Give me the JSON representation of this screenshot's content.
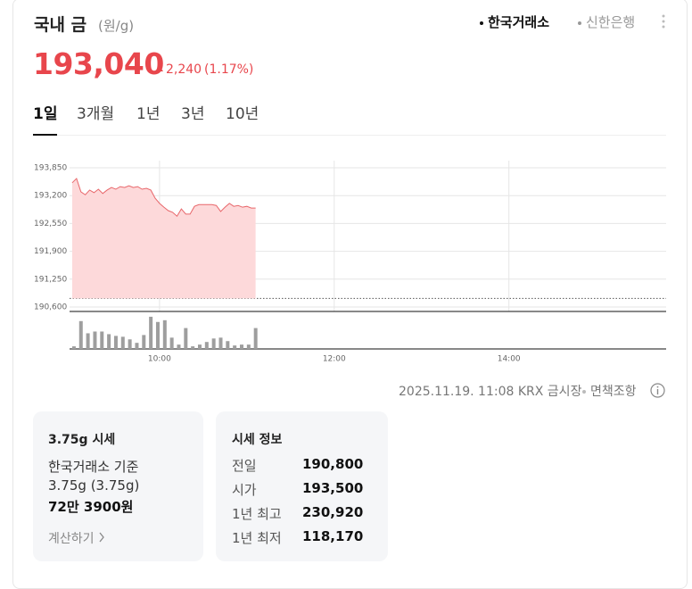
{
  "header": {
    "title": "국내 금",
    "unit": "(원/g)",
    "sources": [
      "한국거래소",
      "신한은행"
    ],
    "price": "193,040",
    "change": "2,240",
    "change_rate": "(1.17%)"
  },
  "tabs": [
    "1일",
    "3개월",
    "1년",
    "3년",
    "10년"
  ],
  "chart_data": {
    "type": "area",
    "x": [
      9.0,
      9.05,
      9.1,
      9.15,
      9.2,
      9.25,
      9.3,
      9.35,
      9.4,
      9.45,
      9.5,
      9.55,
      9.6,
      9.65,
      9.7,
      9.75,
      9.8,
      9.85,
      9.9,
      9.95,
      10.0,
      10.05,
      10.1,
      10.15,
      10.2,
      10.25,
      10.3,
      10.35,
      10.4,
      10.45,
      10.5,
      10.55,
      10.6,
      10.65,
      10.7,
      10.75,
      10.8,
      10.85,
      10.9,
      10.95,
      11.0,
      11.05,
      11.1
    ],
    "values": [
      193500,
      193600,
      193290,
      193220,
      193330,
      193270,
      193350,
      193250,
      193330,
      193390,
      193350,
      193410,
      193390,
      193430,
      193390,
      193410,
      193350,
      193370,
      193330,
      193140,
      193020,
      192930,
      192850,
      192810,
      192720,
      192890,
      192770,
      192770,
      192950,
      192990,
      192990,
      192990,
      192990,
      192970,
      192830,
      192930,
      193020,
      192950,
      192970,
      192930,
      192950,
      192910,
      192910
    ],
    "color": "#e8676b",
    "fill": "#fdd9da",
    "reference_line": 190800,
    "xlim": [
      8.97,
      15.8
    ],
    "xticks": [
      {
        "value": 10,
        "label": "10:00"
      },
      {
        "value": 12,
        "label": "12:00"
      },
      {
        "value": 14,
        "label": "14:00"
      }
    ],
    "ylim": [
      190600,
      193850
    ],
    "yticks": [
      {
        "value": 193850,
        "label": "193,850"
      },
      {
        "value": 193200,
        "label": "193,200"
      },
      {
        "value": 192550,
        "label": "192,550"
      },
      {
        "value": 191900,
        "label": "191,900"
      },
      {
        "value": 191250,
        "label": "191,250"
      },
      {
        "value": 190600,
        "label": "190,600"
      }
    ],
    "grid": true,
    "volume": {
      "color": "#9e9e9e",
      "ylim": [
        0,
        40
      ],
      "x": [
        9.0,
        9.08,
        9.16,
        9.24,
        9.32,
        9.4,
        9.48,
        9.56,
        9.64,
        9.72,
        9.8,
        9.88,
        9.96,
        10.04,
        10.12,
        10.2,
        10.28,
        10.36,
        10.44,
        10.52,
        10.6,
        10.68,
        10.76,
        10.84,
        10.92,
        11.0,
        11.08
      ],
      "values": [
        3,
        32,
        18,
        20,
        20,
        17,
        15,
        14,
        11,
        7,
        16,
        37,
        31,
        33,
        13,
        5,
        24,
        3,
        5,
        8,
        12,
        13,
        9,
        4,
        5,
        5,
        24
      ]
    }
  },
  "footer": {
    "timestamp": "2025.11.19. 11:08 KRX 금시장",
    "disclaimer": "면책조항"
  },
  "card_375": {
    "title": "3.75g 시세",
    "lines": [
      "한국거래소 기준",
      "3.75g (3.75g)"
    ],
    "price": "72만 3900원",
    "link": "계산하기"
  },
  "info": {
    "title": "시세 정보",
    "rows": [
      [
        "전일",
        "190,800"
      ],
      [
        "시가",
        "193,500"
      ],
      [
        "1년 최고",
        "230,920"
      ],
      [
        "1년 최저",
        "118,170"
      ]
    ]
  }
}
